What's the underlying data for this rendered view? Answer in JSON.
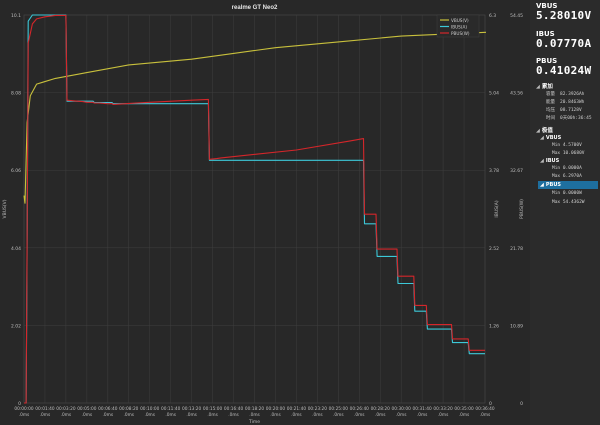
{
  "window": {
    "title": "realme GT Neo2"
  },
  "readouts": [
    {
      "label": "VBUS",
      "value": "5.28010V"
    },
    {
      "label": "IBUS",
      "value": "0.07770A"
    },
    {
      "label": "PBUS",
      "value": "0.41024W"
    }
  ],
  "tree": {
    "cumulative": {
      "label": "累加",
      "rows": [
        {
          "key": "容量",
          "value": "82.3926Ah"
        },
        {
          "key": "能量",
          "value": "20.8463Wh"
        },
        {
          "key": "均压",
          "value": "08.7128V"
        },
        {
          "key": "时间",
          "value": "0天00h:36:45"
        }
      ]
    },
    "extremes": {
      "label": "极值",
      "groups": [
        {
          "label": "VBUS",
          "min": "Min 4.5700V",
          "max": "Max 10.0680V",
          "selected": false
        },
        {
          "label": "IBUS",
          "min": "Min 0.0000A",
          "max": "Max 6.2970A",
          "selected": false
        },
        {
          "label": "PBUS",
          "min": "Min 0.0000W",
          "max": "Max 54.4362W",
          "selected": true
        }
      ]
    }
  },
  "chart_data": {
    "type": "line",
    "title": "realme GT Neo2",
    "xlabel": "Time",
    "ylabel_left": "VBUS(V)",
    "ylabel_right": "IBUS(A)",
    "ylabel_right2": "PBUS(W)",
    "ylim_left": [
      0,
      10.1
    ],
    "ylim_right": [
      0,
      6.3
    ],
    "ylim_right2": [
      0,
      54.45
    ],
    "yticks_left": [
      "0",
      "2.02",
      "4.04",
      "6.06",
      "8.08",
      "10.1"
    ],
    "yticks_right": [
      "0",
      "1.26",
      "2.52",
      "3.78",
      "5.04",
      "6.3"
    ],
    "yticks_right2": [
      "0",
      "10.89",
      "21.78",
      "32.67",
      "43.56",
      "54.45"
    ],
    "xticks": [
      "00:00:00",
      "00:01:40",
      "00:03:20",
      "00:05:00",
      "00:06:40",
      "00:08:20",
      "00:10:00",
      "00:11:40",
      "00:13:20",
      "00:15:00",
      "00:16:40",
      "00:18:20",
      "00:20:00",
      "00:21:40",
      "00:23:20",
      "00:25:00",
      "00:26:40",
      "00:28:20",
      "00:30:00",
      "00:31:40",
      "00:33:20",
      "00:35:00",
      "00:36:40"
    ],
    "xtick_sub": ".0ms",
    "xlim": [
      0,
      2200
    ],
    "grid": true,
    "legend_position": "top-right",
    "series": [
      {
        "name": "VBUS(V)",
        "color": "#c8c03c",
        "axis": "left",
        "x": [
          0,
          5,
          15,
          30,
          60,
          90,
          150,
          300,
          500,
          800,
          1000,
          1200,
          1500,
          1800,
          2000,
          2205
        ],
        "y": [
          5.4,
          5.2,
          7.3,
          8.0,
          8.3,
          8.35,
          8.45,
          8.6,
          8.8,
          8.95,
          9.1,
          9.25,
          9.4,
          9.55,
          9.6,
          9.65
        ]
      },
      {
        "name": "IBUS(A)",
        "color": "#3cc8d8",
        "axis": "right",
        "x": [
          0,
          10,
          14,
          20,
          40,
          60,
          100,
          150,
          180,
          200,
          205,
          240,
          280,
          300,
          330,
          335,
          360,
          400,
          420,
          425,
          600,
          800,
          880,
          885,
          920,
          940,
          1300,
          1560,
          1620,
          1625,
          1680,
          1685,
          1780,
          1785,
          1860,
          1865,
          1920,
          1925,
          2040,
          2045,
          2120,
          2125,
          2200
        ],
        "y": [
          0,
          0,
          1.9,
          6.2,
          6.3,
          6.3,
          6.3,
          6.3,
          6.3,
          6.3,
          4.9,
          4.9,
          4.9,
          4.9,
          4.9,
          4.88,
          4.88,
          4.88,
          4.88,
          4.86,
          4.86,
          4.86,
          4.86,
          3.94,
          3.94,
          3.94,
          3.94,
          3.94,
          3.94,
          2.91,
          2.91,
          2.38,
          2.38,
          1.94,
          1.94,
          1.49,
          1.49,
          1.2,
          1.2,
          0.98,
          0.98,
          0.8,
          0.8
        ]
      },
      {
        "name": "PBUS(W)",
        "color": "#d4262a",
        "axis": "right2",
        "x": [
          0,
          10,
          14,
          20,
          40,
          60,
          100,
          150,
          180,
          200,
          205,
          240,
          280,
          300,
          330,
          335,
          360,
          400,
          420,
          425,
          600,
          800,
          880,
          885,
          920,
          940,
          1300,
          1560,
          1620,
          1625,
          1680,
          1685,
          1780,
          1785,
          1860,
          1865,
          1920,
          1925,
          2040,
          2045,
          2120,
          2125,
          2200
        ],
        "y": [
          0,
          0,
          18,
          50.5,
          53.2,
          53.9,
          54.2,
          54.4,
          54.4,
          54.4,
          42.5,
          42.4,
          42.3,
          42.2,
          42.2,
          42.1,
          42.1,
          42.0,
          42.0,
          41.9,
          42.2,
          42.5,
          42.6,
          34.2,
          34.3,
          34.4,
          35.5,
          36.8,
          37.1,
          26.5,
          26.5,
          21.6,
          21.6,
          17.8,
          17.8,
          13.7,
          13.7,
          11.0,
          11.0,
          9.0,
          9.0,
          7.4,
          7.4
        ]
      }
    ]
  },
  "colors": {
    "background": "#282828",
    "grid": "#3f3f3f",
    "axis_text": "#bdbdbd",
    "selected": "#1e6f9f"
  }
}
